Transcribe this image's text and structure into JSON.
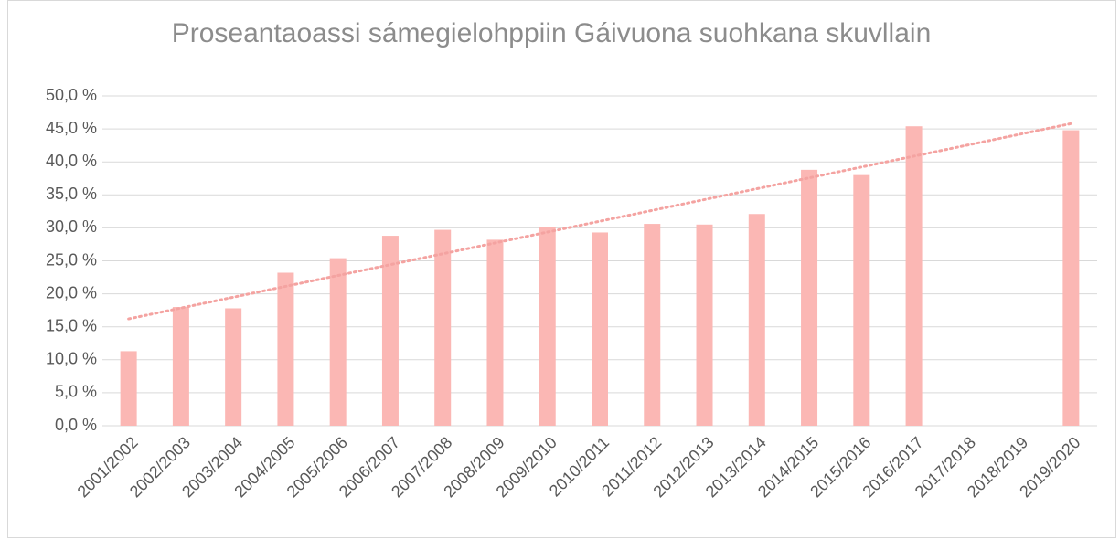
{
  "chart_data": {
    "type": "bar",
    "title": "Proseantaoassi sámegielohppiin Gáivuona suohkana skuvllain",
    "categories": [
      "2001/2002",
      "2002/2003",
      "2003/2004",
      "2004/2005",
      "2005/2006",
      "2006/2007",
      "2007/2008",
      "2008/2009",
      "2009/2010",
      "2010/2011",
      "2011/2012",
      "2012/2013",
      "2013/2014",
      "2014/2015",
      "2015/2016",
      "2016/2017",
      "2017/2018",
      "2018/2019",
      "2019/2020"
    ],
    "values": [
      11.3,
      18.0,
      17.8,
      23.2,
      25.4,
      28.8,
      29.7,
      28.2,
      30.1,
      29.3,
      30.6,
      30.5,
      32.1,
      38.8,
      38.0,
      45.4,
      null,
      null,
      44.8
    ],
    "color": "#fbb7b4",
    "trend": [
      16.2,
      45.8
    ],
    "trend_color": "#f4a3a1",
    "ylim": [
      0,
      50
    ],
    "yticks": [
      {
        "value": 0,
        "label": "0,0 %"
      },
      {
        "value": 5,
        "label": "5,0 %"
      },
      {
        "value": 10,
        "label": "10,0 %"
      },
      {
        "value": 15,
        "label": "15,0 %"
      },
      {
        "value": 20,
        "label": "20,0 %"
      },
      {
        "value": 25,
        "label": "25,0 %"
      },
      {
        "value": 30,
        "label": "30,0 %"
      },
      {
        "value": 35,
        "label": "35,0 %"
      },
      {
        "value": 40,
        "label": "40,0 %"
      },
      {
        "value": 45,
        "label": "45,0 %"
      },
      {
        "value": 50,
        "label": "50,0 %"
      }
    ],
    "grid": true
  }
}
